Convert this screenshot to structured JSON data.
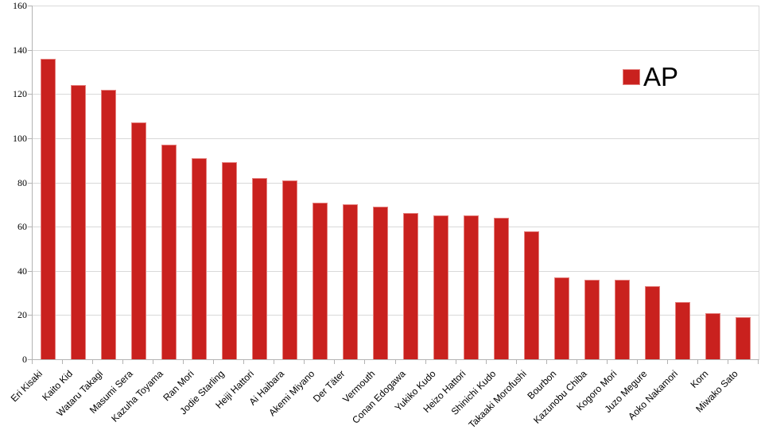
{
  "chart_data": {
    "type": "bar",
    "title": "",
    "xlabel": "",
    "ylabel": "",
    "categories": [
      "Eri Kisaki",
      "Kaito Kid",
      "Wataru Takagi",
      "Masumi Sera",
      "Kazuha Toyama",
      "Ran Mori",
      "Jodie Starling",
      "Heiji Hattori",
      "Ai Haibara",
      "Akemi Miyano",
      "Der Täter",
      "Vermouth",
      "Conan Edogawa",
      "Yukiko Kudo",
      "Heizo Hattori",
      "Shinichi Kudo",
      "Takaaki Morofushi",
      "Bourbon",
      "Kazunobu Chiba",
      "Kogoro Mori",
      "Juzo Megure",
      "Aoko Nakamori",
      "Korn",
      "Miwako Sato"
    ],
    "series": [
      {
        "name": "AP",
        "values": [
          136,
          124,
          122,
          107,
          97,
          91,
          89,
          82,
          81,
          71,
          70,
          69,
          66,
          65,
          65,
          64,
          58,
          37,
          36,
          36,
          33,
          26,
          21,
          19
        ]
      }
    ],
    "ylim": [
      0,
      160
    ],
    "yticks": [
      0,
      20,
      40,
      60,
      80,
      100,
      120,
      140,
      160
    ],
    "grid": "horizontal",
    "legend": {
      "position": "top-right",
      "label": "AP"
    },
    "x_label_rotation_deg": 45,
    "colors": {
      "bar": "#c9211e",
      "bar_border": "#e5817e",
      "gridline": "#d9d9d9",
      "axis": "#b3b3b3",
      "background": "#ffffff",
      "text": "#000000"
    }
  }
}
